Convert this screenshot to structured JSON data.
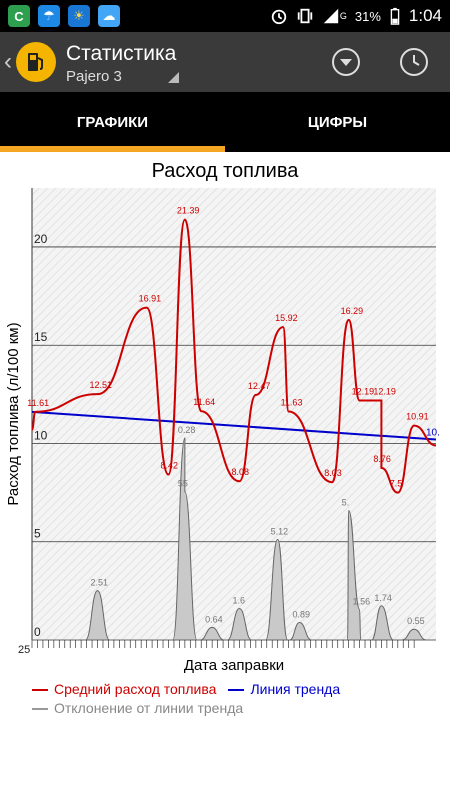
{
  "status_bar": {
    "battery": "31%",
    "time": "1:04",
    "network": "G"
  },
  "toolbar": {
    "title": "Статистика",
    "subtitle": "Pajero 3"
  },
  "tabs": [
    {
      "label": "ГРАФИКИ",
      "active": true
    },
    {
      "label": "ЦИФРЫ",
      "active": false
    }
  ],
  "chart_data": {
    "type": "line",
    "title": "Расход топлива",
    "xlabel": "Дата заправки",
    "ylabel": "Расход топлива (л/100 км)",
    "ylim": [
      0,
      23
    ],
    "y_ticks": [
      0,
      5,
      10,
      15,
      20
    ],
    "grid": true,
    "x_tick_labels": [
      "25"
    ],
    "series": [
      {
        "name": "Средний расход топлива",
        "color": "#cc0000",
        "labels": [
          {
            "x": 0.6,
            "y": 11.61
          },
          {
            "x": 12,
            "y": 12.51
          },
          {
            "x": 21,
            "y": 16.91
          },
          {
            "x": 28,
            "y": 21.39
          },
          {
            "x": 25,
            "y": 8.42
          },
          {
            "x": 31,
            "y": 11.64
          },
          {
            "x": 38,
            "y": 8.08
          },
          {
            "x": 41,
            "y": 12.47
          },
          {
            "x": 46,
            "y": 15.92
          },
          {
            "x": 47,
            "y": 11.63
          },
          {
            "x": 55,
            "y": 8.03
          },
          {
            "x": 58,
            "y": 16.29
          },
          {
            "x": 60,
            "y": 12.19
          },
          {
            "x": 64,
            "y": 12.19
          },
          {
            "x": 64,
            "y": 8.76
          },
          {
            "x": 67,
            "y": 7.5
          },
          {
            "x": 70,
            "y": 10.91
          }
        ]
      },
      {
        "name": "Линия тренда",
        "color": "#0000cc",
        "start_y": 11.61,
        "end_y": 10.2,
        "label": "10."
      },
      {
        "name": "Отклонение от линии тренда",
        "color": "#999999",
        "labels": [
          {
            "x": 12,
            "y": 2.51
          },
          {
            "x": 28,
            "y": 10.28,
            "text": "0.28"
          },
          {
            "x": 28,
            "y": 7.55,
            "text": "55"
          },
          {
            "x": 33,
            "y": 0.64
          },
          {
            "x": 38,
            "y": 1.6
          },
          {
            "x": 45,
            "y": 5.12
          },
          {
            "x": 49,
            "y": 0.89
          },
          {
            "x": 58,
            "y": 6.59,
            "text": "5."
          },
          {
            "x": 60,
            "y": 1.56
          },
          {
            "x": 64,
            "y": 1.74
          },
          {
            "x": 70,
            "y": 0.55
          }
        ]
      }
    ]
  }
}
